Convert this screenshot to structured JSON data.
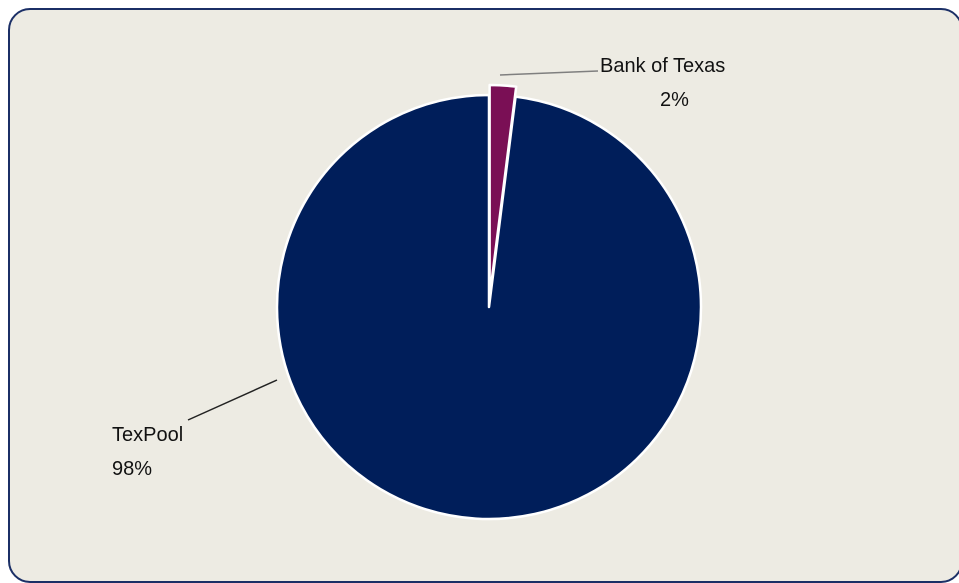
{
  "chart_data": {
    "type": "pie",
    "title": "",
    "start_angle_deg": 0,
    "direction": "clockwise",
    "slice_border_color": "#ffffff",
    "background_color": "#edebe3",
    "frame_color": "#1b2f66",
    "slices": [
      {
        "label": "Bank of Texas",
        "value": 2,
        "value_label": "2%",
        "color": "#7a0f55",
        "exploded": true
      },
      {
        "label": "TexPool",
        "value": 98,
        "value_label": "98%",
        "color": "#001e5a",
        "exploded": false
      }
    ]
  }
}
